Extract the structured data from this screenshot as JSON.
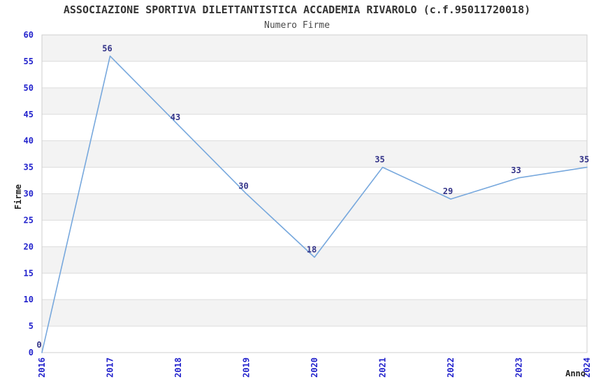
{
  "chart_data": {
    "type": "line",
    "title": "ASSOCIAZIONE SPORTIVA DILETTANTISTICA ACCADEMIA RIVAROLO (c.f.95011720018)",
    "subtitle": "Numero Firme",
    "categories": [
      "2016",
      "2017",
      "2018",
      "2019",
      "2020",
      "2021",
      "2022",
      "2023",
      "2024"
    ],
    "values": [
      0,
      56,
      43,
      30,
      18,
      35,
      29,
      33,
      35
    ],
    "series": [
      {
        "name": "Numero Firme",
        "values": [
          0,
          56,
          43,
          30,
          18,
          35,
          29,
          33,
          35
        ]
      }
    ],
    "xlabel": "Anno",
    "ylabel": "Firme",
    "ylim": [
      0,
      60
    ],
    "ytick_step": 5,
    "xtick_rotation_degrees": 90,
    "grid": "horizontal gridlines every 5 with alternating shaded bands",
    "legend_position": "none",
    "point_labels_shown": true,
    "colors": {
      "line": "#77a8dd",
      "tick_label": "#2222cc",
      "point_label": "#333388",
      "band_fill": "#f3f3f3",
      "gridline": "#dcdcdc",
      "plot_border": "#cfcfcf",
      "title_text": "#333333",
      "background": "#ffffff"
    }
  }
}
